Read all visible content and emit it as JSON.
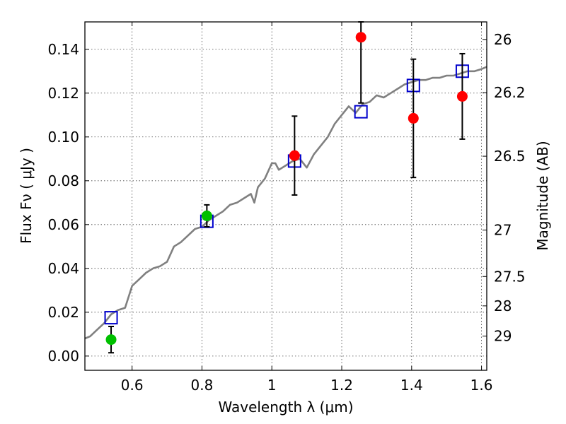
{
  "chart_data": {
    "type": "scatter",
    "title": "",
    "xlabel": "Wavelength  λ (μm)",
    "ylabel": "Flux  Fν  ( μJy )",
    "y2label": "Magnitude (AB)",
    "xlim": [
      0.465,
      1.615
    ],
    "ylim": [
      -0.0065,
      0.1525
    ],
    "grid": true,
    "x_ticks": [
      0.6,
      0.8,
      1.0,
      1.2,
      1.4,
      1.6
    ],
    "x_tick_labels": [
      "0.6",
      "0.8",
      "1",
      "1.2",
      "1.4",
      "1.6"
    ],
    "y_ticks": [
      0.0,
      0.02,
      0.04,
      0.06,
      0.08,
      0.1,
      0.12,
      0.14
    ],
    "y_tick_labels": [
      "0.00",
      "0.02",
      "0.04",
      "0.06",
      "0.08",
      "0.10",
      "0.12",
      "0.14"
    ],
    "mag_ticks": [
      {
        "label": "26",
        "flux": 0.1445
      },
      {
        "label": "26.2",
        "flux": 0.1202
      },
      {
        "label": "26.5",
        "flux": 0.0912
      },
      {
        "label": "27",
        "flux": 0.0575
      },
      {
        "label": "27.5",
        "flux": 0.0363
      },
      {
        "label": "28",
        "flux": 0.0229
      },
      {
        "label": "29",
        "flux": 0.0091
      }
    ],
    "series": [
      {
        "name": "model-spectrum",
        "kind": "line",
        "color": "#808080",
        "x": [
          0.465,
          0.48,
          0.5,
          0.52,
          0.54,
          0.56,
          0.58,
          0.6,
          0.62,
          0.64,
          0.66,
          0.68,
          0.7,
          0.72,
          0.74,
          0.76,
          0.78,
          0.8,
          0.82,
          0.84,
          0.86,
          0.88,
          0.9,
          0.92,
          0.94,
          0.95,
          0.96,
          0.98,
          1.0,
          1.01,
          1.02,
          1.04,
          1.06,
          1.08,
          1.1,
          1.12,
          1.14,
          1.16,
          1.18,
          1.2,
          1.22,
          1.24,
          1.26,
          1.28,
          1.3,
          1.32,
          1.34,
          1.36,
          1.38,
          1.4,
          1.42,
          1.44,
          1.46,
          1.48,
          1.5,
          1.52,
          1.54,
          1.56,
          1.58,
          1.6,
          1.615
        ],
        "y": [
          0.008,
          0.009,
          0.012,
          0.015,
          0.019,
          0.021,
          0.022,
          0.032,
          0.035,
          0.038,
          0.04,
          0.041,
          0.043,
          0.05,
          0.052,
          0.055,
          0.058,
          0.059,
          0.062,
          0.064,
          0.066,
          0.069,
          0.07,
          0.072,
          0.074,
          0.07,
          0.077,
          0.081,
          0.088,
          0.088,
          0.085,
          0.087,
          0.089,
          0.09,
          0.086,
          0.092,
          0.096,
          0.1,
          0.106,
          0.11,
          0.114,
          0.111,
          0.115,
          0.116,
          0.119,
          0.118,
          0.12,
          0.122,
          0.124,
          0.125,
          0.126,
          0.126,
          0.127,
          0.127,
          0.128,
          0.128,
          0.129,
          0.13,
          0.13,
          0.131,
          0.132
        ]
      },
      {
        "name": "model-bandpass",
        "kind": "open-square",
        "color": "#0000cc",
        "x": [
          0.54,
          0.814,
          1.065,
          1.255,
          1.405,
          1.545
        ],
        "y": [
          0.0175,
          0.0615,
          0.089,
          0.1115,
          0.1235,
          0.13
        ]
      },
      {
        "name": "observed-optical",
        "kind": "filled-circle",
        "color": "#00c000",
        "x": [
          0.54,
          0.814
        ],
        "y": [
          0.0075,
          0.064
        ],
        "yerr": [
          0.006,
          0.005
        ]
      },
      {
        "name": "observed-infrared",
        "kind": "filled-circle",
        "color": "#ff0000",
        "x": [
          1.065,
          1.255,
          1.405,
          1.545
        ],
        "y": [
          0.0915,
          0.1455,
          0.1085,
          0.1185
        ],
        "yerr": [
          0.018,
          0.03,
          0.027,
          0.0195
        ]
      }
    ]
  }
}
